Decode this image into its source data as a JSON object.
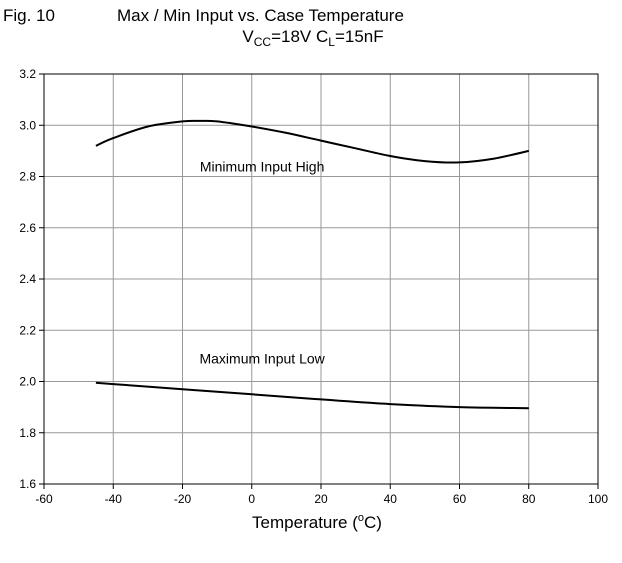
{
  "header": {
    "figure_label": "Fig. 10",
    "title": "Max / Min Input vs. Case Temperature",
    "cond_vcc_prefix": "V",
    "cond_vcc_sub": "CC",
    "cond_vcc_value": "=18V C",
    "cond_cl_sub": "L",
    "cond_cl_value": "=15nF"
  },
  "axis": {
    "xlabel_prefix": "Temperature (",
    "xlabel_sup": "o",
    "xlabel_suffix": "C)"
  },
  "chart_data": {
    "type": "line",
    "xlim": [
      -60,
      100
    ],
    "ylim": [
      1.6,
      3.2
    ],
    "xticks": [
      -60,
      -40,
      -20,
      0,
      20,
      40,
      60,
      80,
      100
    ],
    "yticks": [
      1.6,
      1.8,
      2.0,
      2.2,
      2.4,
      2.6,
      2.8,
      3.0,
      3.2
    ],
    "xtick_labels": [
      "-60",
      "-40",
      "-20",
      "0",
      "20",
      "40",
      "60",
      "80",
      "100"
    ],
    "ytick_labels": [
      "1.6",
      "1.8",
      "2.0",
      "2.2",
      "2.4",
      "2.6",
      "2.8",
      "3.0",
      "3.2"
    ],
    "grid": true,
    "series": [
      {
        "name": "Minimum Input High",
        "x": [
          -45,
          -40,
          -30,
          -20,
          -15,
          -10,
          0,
          10,
          20,
          30,
          40,
          50,
          60,
          70,
          80
        ],
        "y": [
          2.92,
          2.95,
          2.995,
          3.015,
          3.017,
          3.015,
          2.995,
          2.97,
          2.94,
          2.91,
          2.88,
          2.86,
          2.855,
          2.87,
          2.9
        ]
      },
      {
        "name": "Maximum Input Low",
        "x": [
          -45,
          -40,
          -20,
          0,
          20,
          40,
          60,
          80
        ],
        "y": [
          1.995,
          1.99,
          1.97,
          1.95,
          1.93,
          1.912,
          1.9,
          1.896
        ]
      }
    ],
    "annotations": [
      {
        "text": "Minimum Input High",
        "x": 3,
        "y": 2.82
      },
      {
        "text": "Maximum Input Low",
        "x": 3,
        "y": 2.07
      }
    ],
    "line_color": "#000000",
    "grid_color": "#999999"
  }
}
